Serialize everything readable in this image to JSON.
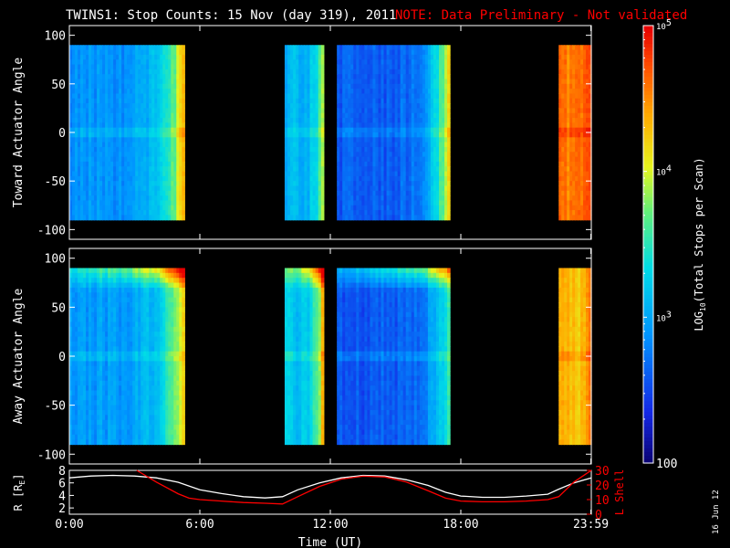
{
  "title": "TWINS1: Stop Counts: 15 Nov (day 319), 2011",
  "note": "NOTE: Data Preliminary - Not validated",
  "date_stamp": "16 Jun 12",
  "colors": {
    "background": "#000000",
    "axes": "#ffffff",
    "note": "#ff0000",
    "r_line": "#ffffff",
    "l_line": "#ff0000"
  },
  "colorbar": {
    "label_prefix": "LOG",
    "label_sub": "10",
    "label_suffix": "(Total Stops per Scan)",
    "scale": "log",
    "range": [
      100,
      100000
    ],
    "ticks": [
      {
        "value": 100,
        "label": "100"
      },
      {
        "value": 1000,
        "label": "10",
        "exp": "3"
      },
      {
        "value": 10000,
        "label": "10",
        "exp": "4"
      },
      {
        "value": 100000,
        "label": "10",
        "exp": "5"
      }
    ]
  },
  "xaxis": {
    "label": "Time (UT)",
    "range_hours": [
      0,
      24
    ],
    "ticks": [
      {
        "hour": 0,
        "label": "0:00"
      },
      {
        "hour": 6,
        "label": "6:00"
      },
      {
        "hour": 12,
        "label": "12:00"
      },
      {
        "hour": 18,
        "label": "18:00"
      },
      {
        "hour": 23.98,
        "label": "23:59"
      }
    ]
  },
  "chart_data": [
    {
      "type": "heatmap",
      "ylabel": "Toward Actuator Angle",
      "ylim": [
        -110,
        110
      ],
      "yticks": [
        -100,
        -50,
        0,
        50,
        100
      ],
      "angle_range": [
        -90,
        90
      ],
      "segments": [
        {
          "t0": 0.0,
          "t1": 5.3,
          "base_log": 2.9,
          "edge_log": 4.3
        },
        {
          "t0": 9.9,
          "t1": 11.7,
          "base_log": 3.1,
          "edge_log": 4.0
        },
        {
          "t0": 12.3,
          "t1": 17.5,
          "base_log": 2.6,
          "edge_log": 4.2
        },
        {
          "t0": 22.5,
          "t1": 24.0,
          "base_log": 4.6,
          "edge_log": 4.8
        }
      ]
    },
    {
      "type": "heatmap",
      "ylabel": "Away Actuator Angle",
      "ylim": [
        -110,
        110
      ],
      "yticks": [
        -100,
        -50,
        0,
        50,
        100
      ],
      "angle_range": [
        -90,
        90
      ],
      "segments": [
        {
          "t0": 0.0,
          "t1": 5.3,
          "base_log": 2.95,
          "edge_log": 4.3,
          "hot_top": true
        },
        {
          "t0": 9.9,
          "t1": 11.7,
          "base_log": 3.2,
          "edge_log": 4.4,
          "hot_top": true
        },
        {
          "t0": 12.3,
          "t1": 17.5,
          "base_log": 2.6,
          "edge_log": 3.6,
          "hot_top": true
        },
        {
          "t0": 22.5,
          "t1": 24.0,
          "base_log": 4.3,
          "edge_log": 4.7
        }
      ]
    },
    {
      "type": "line",
      "ylabel_left": "R [R",
      "ylabel_left_sub": "E",
      "ylabel_left_end": "]",
      "ylabel_right": "L Shell",
      "ylim_left": [
        1,
        8
      ],
      "ylim_right": [
        0,
        30
      ],
      "yticks_left": [
        2,
        4,
        6,
        8
      ],
      "yticks_right": [
        0,
        10,
        20,
        30
      ],
      "series": [
        {
          "axis": "left",
          "color": "#ffffff",
          "x": [
            0,
            1,
            2,
            3,
            4,
            5,
            6,
            7,
            8,
            9,
            9.8,
            10.5,
            11.5,
            12.5,
            13.5,
            14.5,
            15.5,
            16.5,
            17.3,
            18,
            19,
            20,
            21,
            22,
            22.5,
            23.2,
            24
          ],
          "y": [
            6.8,
            7.1,
            7.2,
            7.1,
            6.8,
            6.1,
            4.9,
            4.3,
            3.8,
            3.6,
            3.8,
            4.9,
            6.0,
            6.8,
            7.2,
            7.1,
            6.5,
            5.6,
            4.5,
            3.9,
            3.7,
            3.7,
            3.9,
            4.2,
            5.0,
            6.0,
            6.8
          ]
        },
        {
          "axis": "right",
          "color": "#ff0000",
          "x": [
            3.1,
            4.0,
            5.0,
            5.5,
            6.0,
            7.0,
            8.0,
            9.0,
            9.8,
            10.5,
            11.5,
            12.5,
            13.5,
            14.5,
            15.5,
            16.5,
            17.3,
            18.0,
            19.0,
            20.0,
            21.0,
            22.0,
            22.5,
            23.2,
            24.0
          ],
          "y": [
            30,
            22,
            14,
            11,
            10,
            9,
            8,
            7.5,
            7,
            12,
            19,
            24,
            26,
            25.5,
            22,
            16,
            11,
            9,
            8.5,
            8.5,
            9,
            10,
            12,
            22,
            30
          ]
        }
      ]
    }
  ]
}
